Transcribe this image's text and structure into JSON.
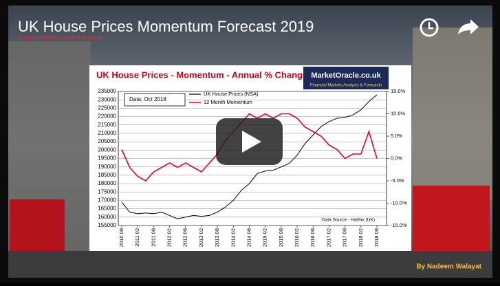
{
  "video": {
    "title": "UK House Prices Momentum Forecast 2019",
    "subtitle": "Financial Markets Analysis & Forecasts",
    "watermark": "By Nadeem Walayat"
  },
  "chart_data": {
    "type": "line",
    "title": "UK House Prices - Momentum - Annual % Change",
    "logo": "MarketOracle.co.uk",
    "logo_tagline": "Financial Markets Analysis & Forecasts",
    "annotation": "Data:  Oct 2018",
    "source": "Data Source - Halifax (UK)",
    "x": [
      "2010 08",
      "2010 11",
      "2011 02",
      "2011 05",
      "2011 08",
      "2011 11",
      "2012 02",
      "2012 05",
      "2012 08",
      "2012 11",
      "2013 02",
      "2013 05",
      "2013 08",
      "2013 11",
      "2014 02",
      "2014 05",
      "2014 08",
      "2014 11",
      "2015 02",
      "2015 05",
      "2015 08",
      "2015 11",
      "2016 02",
      "2016 05",
      "2016 08",
      "2016 11",
      "2017 02",
      "2017 05",
      "2017 08",
      "2017 11",
      "2018 02",
      "2018 05",
      "2018 08"
    ],
    "xticks": [
      "2010 08",
      "2011 02",
      "2011 08",
      "2012 02",
      "2012 08",
      "2013 02",
      "2013 08",
      "2014 02",
      "2014 08",
      "2015 02",
      "2015 08",
      "2016 02",
      "2016 08",
      "2017 02",
      "2017 08",
      "2018 02",
      "2018 08"
    ],
    "series": [
      {
        "name": "UK House Prices (NSA)",
        "color": "#000000",
        "values": [
          169000,
          163000,
          162000,
          162500,
          162000,
          163000,
          161000,
          159000,
          160000,
          161000,
          160500,
          161000,
          163000,
          166000,
          170000,
          176000,
          180000,
          186000,
          187500,
          188000,
          190000,
          192000,
          197000,
          204000,
          209000,
          214000,
          217000,
          219000,
          219500,
          221000,
          224000,
          229000,
          233000
        ]
      },
      {
        "name": "12 Month Momentum",
        "color": "#e8001c",
        "axis": "y2",
        "values": [
          2,
          -2,
          -4,
          -5,
          -3,
          -2,
          -1,
          -2,
          -1,
          -2,
          -3,
          -1,
          1,
          4,
          6,
          8,
          10,
          9,
          10,
          9,
          10,
          10,
          9,
          7,
          6,
          5,
          3,
          2,
          0,
          1,
          1,
          6,
          0
        ]
      }
    ],
    "ylim": [
      155000,
      235000
    ],
    "yticks": [
      155000,
      160000,
      165000,
      170000,
      175000,
      180000,
      185000,
      190000,
      195000,
      200000,
      205000,
      210000,
      215000,
      220000,
      225000,
      230000,
      235000
    ],
    "y2lim": [
      -15,
      15
    ],
    "y2ticks": [
      {
        "value": 15,
        "label": "15.0%"
      },
      {
        "value": 10,
        "label": "10.0%"
      },
      {
        "value": 5,
        "label": "5.0%"
      },
      {
        "value": 0,
        "label": "0.0%"
      },
      {
        "value": -5,
        "label": "-5.0%"
      },
      {
        "value": -10,
        "label": "-10.0%"
      },
      {
        "value": -15,
        "label": "-15.0%"
      }
    ],
    "grid": true
  }
}
